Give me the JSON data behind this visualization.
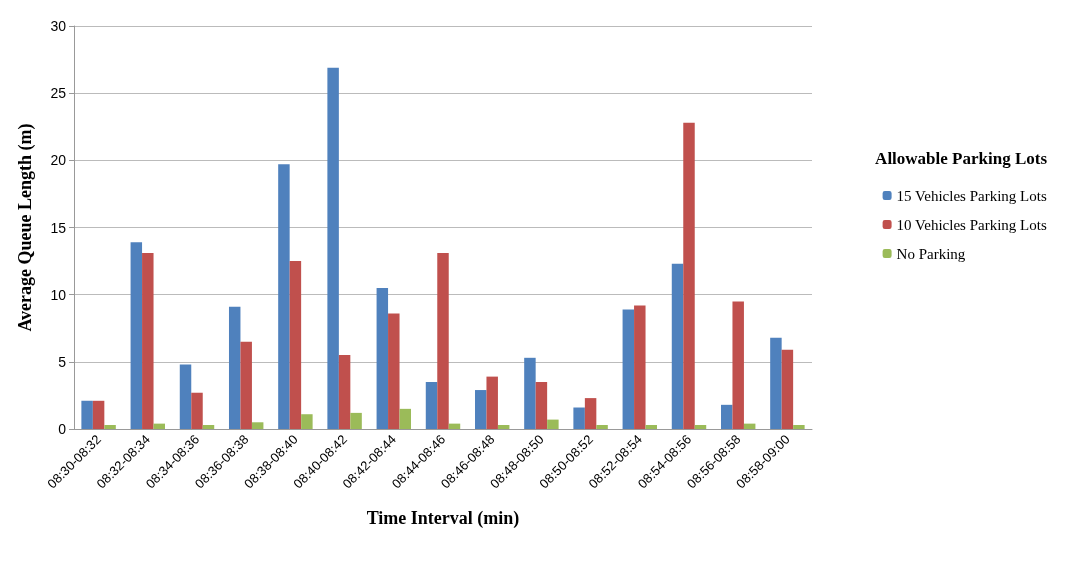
{
  "chart_data": {
    "type": "bar",
    "xlabel": "Time Interval (min)",
    "ylabel": "Average Queue Length (m)",
    "legend_title": "Allowable Parking Lots",
    "categories": [
      "08:30-08:32",
      "08:32-08:34",
      "08:34-08:36",
      "08:36-08:38",
      "08:38-08:40",
      "08:40-08:42",
      "08:42-08:44",
      "08:44-08:46",
      "08:46-08:48",
      "08:48-08:50",
      "08:50-08:52",
      "08:52-08:54",
      "08:54-08:56",
      "08:56-08:58",
      "08:58-09:00"
    ],
    "series": [
      {
        "name": "15 Vehicles Parking Lots",
        "color": "#4f81bd",
        "values": [
          2.1,
          13.9,
          4.8,
          9.1,
          19.7,
          26.9,
          10.5,
          3.5,
          2.9,
          5.3,
          1.6,
          8.9,
          12.3,
          1.8,
          6.8
        ]
      },
      {
        "name": "10 Vehicles Parking Lots",
        "color": "#c0504d",
        "values": [
          2.1,
          13.1,
          2.7,
          6.5,
          12.5,
          5.5,
          8.6,
          13.1,
          3.9,
          3.5,
          2.3,
          9.2,
          22.8,
          9.5,
          5.9
        ]
      },
      {
        "name": "No Parking",
        "color": "#9bbb59",
        "values": [
          0.3,
          0.4,
          0.3,
          0.5,
          1.1,
          1.2,
          1.5,
          0.4,
          0.3,
          0.7,
          0.3,
          0.3,
          0.3,
          0.4,
          0.3
        ]
      }
    ],
    "ylim": [
      0,
      30
    ],
    "yticks": [
      0,
      5,
      10,
      15,
      20,
      25,
      30
    ],
    "grid": "y",
    "legend": "right"
  }
}
